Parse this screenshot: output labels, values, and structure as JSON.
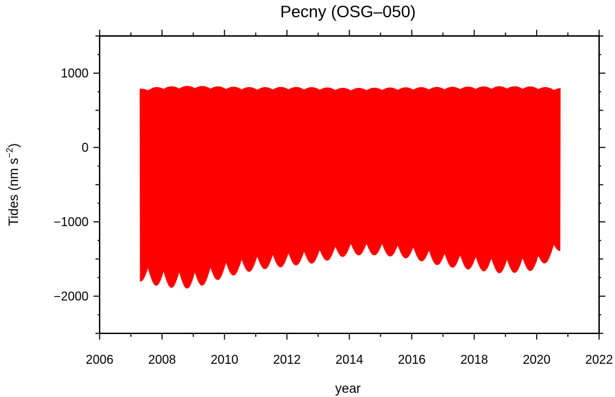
{
  "chart_data": {
    "type": "line",
    "title": "Pecny (OSG–050)",
    "xlabel": "year",
    "ylabel": "Tides (nm s",
    "ylabel_sup": "−2",
    "ylabel_close": ")",
    "xlim": [
      2006,
      2022
    ],
    "ylim": [
      -2500,
      1500
    ],
    "xticks": [
      "2006",
      "2008",
      "2010",
      "2012",
      "2014",
      "2016",
      "2018",
      "2020",
      "2022"
    ],
    "yticks": [
      "1000",
      "0",
      "−1000",
      "−2000"
    ],
    "grid": false,
    "series": [
      {
        "color": "#ff0000",
        "x_range": [
          2007.3,
          2020.75
        ],
        "upper_envelope": {
          "x": [
            2007.3,
            2008.0,
            2009.0,
            2010.0,
            2011.0,
            2012.0,
            2013.0,
            2014.0,
            2015.0,
            2016.0,
            2017.0,
            2018.0,
            2019.0,
            2020.0,
            2020.75
          ],
          "y": [
            790,
            820,
            830,
            820,
            810,
            815,
            810,
            800,
            805,
            810,
            815,
            820,
            825,
            820,
            800
          ]
        },
        "lower_envelope": {
          "x": [
            2007.3,
            2008.0,
            2009.0,
            2010.0,
            2011.0,
            2012.0,
            2013.0,
            2014.0,
            2015.0,
            2016.0,
            2017.0,
            2018.0,
            2019.0,
            2020.0,
            2020.75
          ],
          "y": [
            -1800,
            -1880,
            -1900,
            -1750,
            -1650,
            -1600,
            -1550,
            -1450,
            -1450,
            -1500,
            -1600,
            -1650,
            -1700,
            -1650,
            -1400
          ]
        },
        "approx_period_years": 0.5
      }
    ]
  }
}
